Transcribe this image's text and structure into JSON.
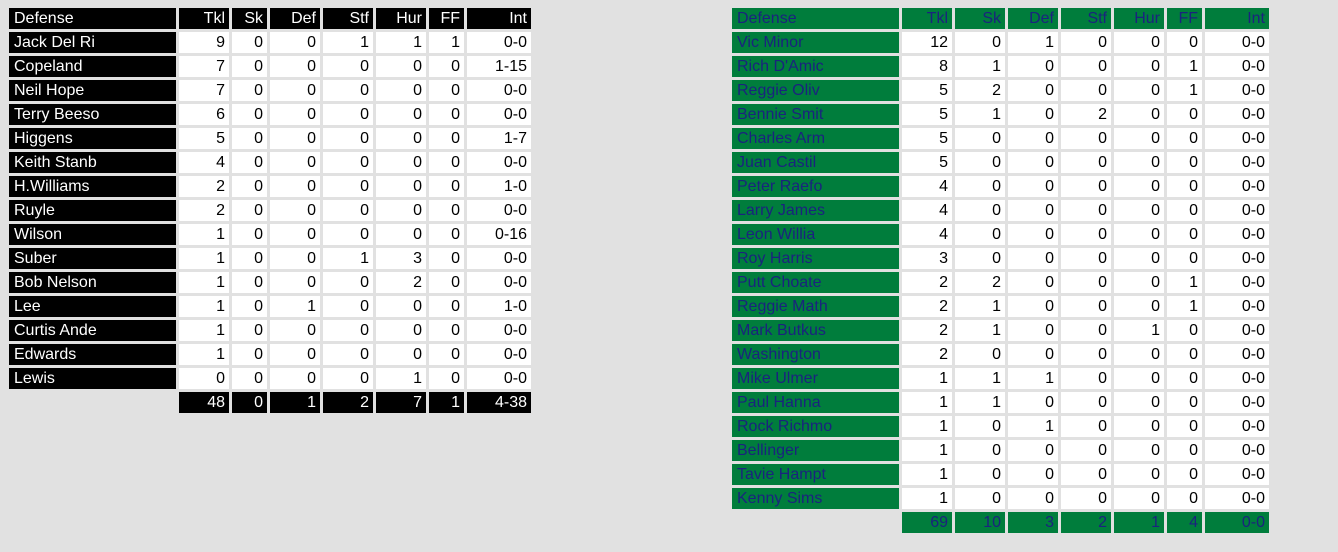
{
  "colors": {
    "page_background": "#e1e1e1",
    "left_team_header": "#000000",
    "left_team_text": "#ffffff",
    "right_team_header": "#007d3c",
    "right_team_text": "#1a237e",
    "cell_background": "#ffffff"
  },
  "left_team": {
    "columns": [
      "Defense",
      "Tkl",
      "Sk",
      "Def",
      "Stf",
      "Hur",
      "FF",
      "Int"
    ],
    "rows": [
      {
        "name": "Jack Del Ri",
        "tkl": "9",
        "sk": "0",
        "def": "0",
        "stf": "1",
        "hur": "1",
        "ff": "1",
        "int": "0-0"
      },
      {
        "name": "Copeland",
        "tkl": "7",
        "sk": "0",
        "def": "0",
        "stf": "0",
        "hur": "0",
        "ff": "0",
        "int": "1-15"
      },
      {
        "name": "Neil Hope",
        "tkl": "7",
        "sk": "0",
        "def": "0",
        "stf": "0",
        "hur": "0",
        "ff": "0",
        "int": "0-0"
      },
      {
        "name": "Terry Beeso",
        "tkl": "6",
        "sk": "0",
        "def": "0",
        "stf": "0",
        "hur": "0",
        "ff": "0",
        "int": "0-0"
      },
      {
        "name": "Higgens",
        "tkl": "5",
        "sk": "0",
        "def": "0",
        "stf": "0",
        "hur": "0",
        "ff": "0",
        "int": "1-7"
      },
      {
        "name": "Keith Stanb",
        "tkl": "4",
        "sk": "0",
        "def": "0",
        "stf": "0",
        "hur": "0",
        "ff": "0",
        "int": "0-0"
      },
      {
        "name": "H.Williams",
        "tkl": "2",
        "sk": "0",
        "def": "0",
        "stf": "0",
        "hur": "0",
        "ff": "0",
        "int": "1-0"
      },
      {
        "name": "Ruyle",
        "tkl": "2",
        "sk": "0",
        "def": "0",
        "stf": "0",
        "hur": "0",
        "ff": "0",
        "int": "0-0"
      },
      {
        "name": "Wilson",
        "tkl": "1",
        "sk": "0",
        "def": "0",
        "stf": "0",
        "hur": "0",
        "ff": "0",
        "int": "0-16"
      },
      {
        "name": "Suber",
        "tkl": "1",
        "sk": "0",
        "def": "0",
        "stf": "1",
        "hur": "3",
        "ff": "0",
        "int": "0-0"
      },
      {
        "name": "Bob Nelson",
        "tkl": "1",
        "sk": "0",
        "def": "0",
        "stf": "0",
        "hur": "2",
        "ff": "0",
        "int": "0-0"
      },
      {
        "name": "Lee",
        "tkl": "1",
        "sk": "0",
        "def": "1",
        "stf": "0",
        "hur": "0",
        "ff": "0",
        "int": "1-0"
      },
      {
        "name": "Curtis Ande",
        "tkl": "1",
        "sk": "0",
        "def": "0",
        "stf": "0",
        "hur": "0",
        "ff": "0",
        "int": "0-0"
      },
      {
        "name": "Edwards",
        "tkl": "1",
        "sk": "0",
        "def": "0",
        "stf": "0",
        "hur": "0",
        "ff": "0",
        "int": "0-0"
      },
      {
        "name": "Lewis",
        "tkl": "0",
        "sk": "0",
        "def": "0",
        "stf": "0",
        "hur": "1",
        "ff": "0",
        "int": "0-0"
      }
    ],
    "totals": {
      "tkl": "48",
      "sk": "0",
      "def": "1",
      "stf": "2",
      "hur": "7",
      "ff": "1",
      "int": "4-38"
    }
  },
  "right_team": {
    "columns": [
      "Defense",
      "Tkl",
      "Sk",
      "Def",
      "Stf",
      "Hur",
      "FF",
      "Int"
    ],
    "rows": [
      {
        "name": "Vic Minor",
        "tkl": "12",
        "sk": "0",
        "def": "1",
        "stf": "0",
        "hur": "0",
        "ff": "0",
        "int": "0-0"
      },
      {
        "name": "Rich D'Amic",
        "tkl": "8",
        "sk": "1",
        "def": "0",
        "stf": "0",
        "hur": "0",
        "ff": "1",
        "int": "0-0"
      },
      {
        "name": "Reggie Oliv",
        "tkl": "5",
        "sk": "2",
        "def": "0",
        "stf": "0",
        "hur": "0",
        "ff": "1",
        "int": "0-0"
      },
      {
        "name": "Bennie Smit",
        "tkl": "5",
        "sk": "1",
        "def": "0",
        "stf": "2",
        "hur": "0",
        "ff": "0",
        "int": "0-0"
      },
      {
        "name": "Charles Arm",
        "tkl": "5",
        "sk": "0",
        "def": "0",
        "stf": "0",
        "hur": "0",
        "ff": "0",
        "int": "0-0"
      },
      {
        "name": "Juan Castil",
        "tkl": "5",
        "sk": "0",
        "def": "0",
        "stf": "0",
        "hur": "0",
        "ff": "0",
        "int": "0-0"
      },
      {
        "name": "Peter Raefo",
        "tkl": "4",
        "sk": "0",
        "def": "0",
        "stf": "0",
        "hur": "0",
        "ff": "0",
        "int": "0-0"
      },
      {
        "name": "Larry James",
        "tkl": "4",
        "sk": "0",
        "def": "0",
        "stf": "0",
        "hur": "0",
        "ff": "0",
        "int": "0-0"
      },
      {
        "name": "Leon Willia",
        "tkl": "4",
        "sk": "0",
        "def": "0",
        "stf": "0",
        "hur": "0",
        "ff": "0",
        "int": "0-0"
      },
      {
        "name": "Roy Harris",
        "tkl": "3",
        "sk": "0",
        "def": "0",
        "stf": "0",
        "hur": "0",
        "ff": "0",
        "int": "0-0"
      },
      {
        "name": "Putt Choate",
        "tkl": "2",
        "sk": "2",
        "def": "0",
        "stf": "0",
        "hur": "0",
        "ff": "1",
        "int": "0-0"
      },
      {
        "name": "Reggie Math",
        "tkl": "2",
        "sk": "1",
        "def": "0",
        "stf": "0",
        "hur": "0",
        "ff": "1",
        "int": "0-0"
      },
      {
        "name": "Mark Butkus",
        "tkl": "2",
        "sk": "1",
        "def": "0",
        "stf": "0",
        "hur": "1",
        "ff": "0",
        "int": "0-0"
      },
      {
        "name": "Washington",
        "tkl": "2",
        "sk": "0",
        "def": "0",
        "stf": "0",
        "hur": "0",
        "ff": "0",
        "int": "0-0"
      },
      {
        "name": "Mike Ulmer",
        "tkl": "1",
        "sk": "1",
        "def": "1",
        "stf": "0",
        "hur": "0",
        "ff": "0",
        "int": "0-0"
      },
      {
        "name": "Paul Hanna",
        "tkl": "1",
        "sk": "1",
        "def": "0",
        "stf": "0",
        "hur": "0",
        "ff": "0",
        "int": "0-0"
      },
      {
        "name": "Rock Richmo",
        "tkl": "1",
        "sk": "0",
        "def": "1",
        "stf": "0",
        "hur": "0",
        "ff": "0",
        "int": "0-0"
      },
      {
        "name": "Bellinger",
        "tkl": "1",
        "sk": "0",
        "def": "0",
        "stf": "0",
        "hur": "0",
        "ff": "0",
        "int": "0-0"
      },
      {
        "name": "Tavie Hampt",
        "tkl": "1",
        "sk": "0",
        "def": "0",
        "stf": "0",
        "hur": "0",
        "ff": "0",
        "int": "0-0"
      },
      {
        "name": "Kenny Sims",
        "tkl": "1",
        "sk": "0",
        "def": "0",
        "stf": "0",
        "hur": "0",
        "ff": "0",
        "int": "0-0"
      }
    ],
    "totals": {
      "tkl": "69",
      "sk": "10",
      "def": "3",
      "stf": "2",
      "hur": "1",
      "ff": "4",
      "int": "0-0"
    }
  }
}
